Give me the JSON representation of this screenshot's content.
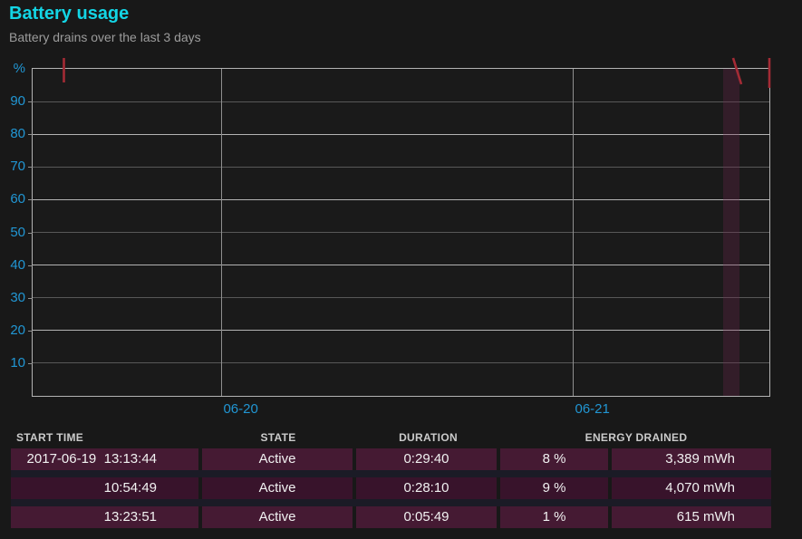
{
  "header": {
    "title": "Battery usage",
    "subtitle": "Battery drains over the last 3 days",
    "title_color": "#13d5e5",
    "subtitle_color": "#9c9c9c"
  },
  "chart_data": {
    "type": "line",
    "title": "Battery usage",
    "ylabel": "%",
    "ylim": [
      0,
      100
    ],
    "grid_on": true,
    "y_ticks": [
      {
        "value": 100,
        "label": "%"
      },
      {
        "value": 90,
        "label": "90"
      },
      {
        "value": 80,
        "label": "80"
      },
      {
        "value": 70,
        "label": "70"
      },
      {
        "value": 60,
        "label": "60"
      },
      {
        "value": 50,
        "label": "50"
      },
      {
        "value": 40,
        "label": "40"
      },
      {
        "value": 30,
        "label": "30"
      },
      {
        "value": 20,
        "label": "20"
      },
      {
        "value": 10,
        "label": "10"
      }
    ],
    "x_ticks": [
      {
        "label": "06-20",
        "frac": 0.2564
      },
      {
        "label": "06-21",
        "frac": 0.7337
      }
    ],
    "axis_label_color": "#2196d3",
    "grid_major_color": "#b3b3b3",
    "grid_minor_color": "#585858",
    "grid_vertical_color": "#8f8f8f",
    "highlight_band": {
      "x_frac": 0.9374,
      "width_frac": 0.0222,
      "color": "rgba(110,35,75,0.30)"
    },
    "drain_color": "#a32b35",
    "drain_marks": [
      {
        "x1": 70.5,
        "y1": 64,
        "x2": 70.5,
        "y2": 91
      },
      {
        "x1": 809,
        "y1": 64,
        "x2": 818,
        "y2": 93
      },
      {
        "x1": 849,
        "y1": 64,
        "x2": 849,
        "y2": 97
      }
    ]
  },
  "table": {
    "headers": {
      "start_time": "START TIME",
      "state": "STATE",
      "duration": "DURATION",
      "energy_drained": "ENERGY DRAINED"
    },
    "rows": [
      {
        "start": "2017-06-19  13:13:44",
        "state": "Active",
        "duration": "0:29:40",
        "percent": "8 %",
        "energy": "3,389 mWh"
      },
      {
        "start": "10:54:49",
        "state": "Active",
        "duration": "0:28:10",
        "percent": "9 %",
        "energy": "4,070 mWh"
      },
      {
        "start": "13:23:51",
        "state": "Active",
        "duration": "0:05:49",
        "percent": "1 %",
        "energy": "615 mWh"
      }
    ]
  }
}
